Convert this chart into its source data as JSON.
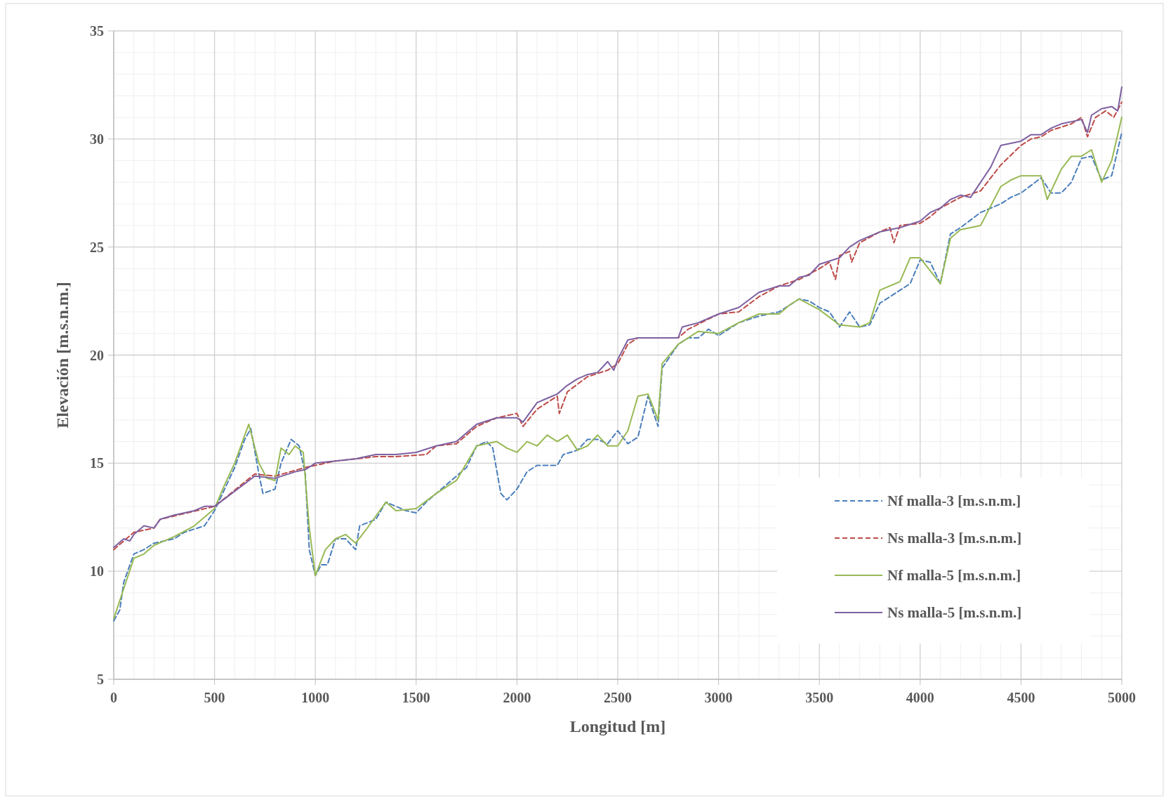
{
  "chart_data": {
    "type": "line",
    "xlabel": "Longitud [m]",
    "ylabel": "Elevación [m.s.n.m.]",
    "xlim": [
      0,
      5000
    ],
    "xticks": [
      0,
      500,
      1000,
      1500,
      2000,
      2500,
      3000,
      3500,
      4000,
      4500,
      5000
    ],
    "ylim": [
      5,
      35
    ],
    "yticks": [
      5,
      10,
      15,
      20,
      25,
      30,
      35
    ],
    "grid": true,
    "legend": "bottom right",
    "marker": "none",
    "series": [
      {
        "name": "Nf malla-3 [m.s.n.m.]",
        "color": "#4a7ebb",
        "line_style": "dashed",
        "x": [
          0,
          30,
          50,
          100,
          150,
          200,
          300,
          350,
          450,
          500,
          550,
          600,
          650,
          680,
          720,
          740,
          800,
          830,
          880,
          920,
          950,
          970,
          1000,
          1030,
          1060,
          1100,
          1150,
          1200,
          1220,
          1300,
          1350,
          1450,
          1500,
          1550,
          1600,
          1700,
          1750,
          1800,
          1850,
          1880,
          1920,
          1950,
          2000,
          2050,
          2100,
          2200,
          2230,
          2300,
          2350,
          2400,
          2450,
          2500,
          2550,
          2600,
          2650,
          2700,
          2720,
          2800,
          2850,
          2900,
          2950,
          3000,
          3100,
          3200,
          3300,
          3400,
          3450,
          3500,
          3550,
          3600,
          3650,
          3700,
          3750,
          3800,
          3900,
          3950,
          4000,
          4050,
          4100,
          4150,
          4200,
          4300,
          4400,
          4450,
          4500,
          4600,
          4650,
          4700,
          4750,
          4800,
          4850,
          4900,
          4950,
          5000
        ],
        "values": [
          7.7,
          8.2,
          9.5,
          10.8,
          11.0,
          11.3,
          11.5,
          11.8,
          12.1,
          12.8,
          13.8,
          14.8,
          16.1,
          16.6,
          14.5,
          13.6,
          13.8,
          15.0,
          16.1,
          15.8,
          14.5,
          11.0,
          9.8,
          10.3,
          10.3,
          11.5,
          11.5,
          11.0,
          12.1,
          12.4,
          13.2,
          12.8,
          12.7,
          13.2,
          13.6,
          14.4,
          14.8,
          15.8,
          16.0,
          15.7,
          13.6,
          13.3,
          13.8,
          14.6,
          14.9,
          14.9,
          15.4,
          15.6,
          16.1,
          16.1,
          15.9,
          16.5,
          15.9,
          16.2,
          18.1,
          16.7,
          19.4,
          20.5,
          20.8,
          20.8,
          21.2,
          20.9,
          21.5,
          21.8,
          22.0,
          22.6,
          22.5,
          22.2,
          22.0,
          21.3,
          22.0,
          21.3,
          21.4,
          22.4,
          23.0,
          23.3,
          24.4,
          24.3,
          23.3,
          25.6,
          25.9,
          26.6,
          27.0,
          27.3,
          27.5,
          28.2,
          27.5,
          27.5,
          28.0,
          29.1,
          29.2,
          28.1,
          28.3,
          30.3
        ]
      },
      {
        "name": "Ns malla-3 [m.s.n.m.]",
        "color": "#be4b48",
        "line_style": "dashed",
        "x": [
          0,
          100,
          200,
          230,
          500,
          700,
          800,
          950,
          1000,
          1100,
          1300,
          1400,
          1550,
          1600,
          1700,
          1800,
          1900,
          2000,
          2030,
          2100,
          2200,
          2210,
          2250,
          2350,
          2450,
          2500,
          2550,
          2600,
          2800,
          2850,
          3000,
          3100,
          3200,
          3300,
          3400,
          3500,
          3550,
          3580,
          3600,
          3650,
          3660,
          3700,
          3800,
          3850,
          3870,
          3900,
          4000,
          4050,
          4100,
          4200,
          4300,
          4350,
          4400,
          4500,
          4550,
          4600,
          4650,
          4750,
          4800,
          4830,
          4870,
          4920,
          4960,
          5000
        ],
        "values": [
          11.0,
          11.8,
          12.0,
          12.4,
          13.0,
          14.5,
          14.4,
          14.8,
          14.9,
          15.1,
          15.3,
          15.3,
          15.4,
          15.8,
          15.9,
          16.7,
          17.1,
          17.3,
          16.7,
          17.5,
          18.1,
          17.3,
          18.3,
          19.0,
          19.3,
          19.6,
          20.5,
          20.8,
          20.8,
          21.2,
          21.9,
          22.0,
          22.7,
          23.2,
          23.5,
          24.0,
          24.3,
          23.5,
          24.6,
          24.8,
          24.3,
          25.2,
          25.7,
          25.9,
          25.2,
          26.0,
          26.1,
          26.4,
          26.8,
          27.3,
          27.6,
          28.2,
          28.8,
          29.7,
          30.0,
          30.1,
          30.4,
          30.7,
          31.0,
          30.1,
          31.0,
          31.3,
          31.0,
          31.7
        ]
      },
      {
        "name": "Nf malla-5 [m.s.n.m.]",
        "color": "#98b954",
        "line_style": "solid",
        "x": [
          0,
          50,
          100,
          150,
          200,
          250,
          300,
          400,
          500,
          550,
          600,
          650,
          670,
          720,
          760,
          800,
          830,
          870,
          900,
          940,
          970,
          1000,
          1050,
          1100,
          1150,
          1200,
          1250,
          1350,
          1400,
          1500,
          1600,
          1700,
          1800,
          1900,
          1950,
          2000,
          2050,
          2100,
          2150,
          2200,
          2250,
          2300,
          2350,
          2400,
          2450,
          2500,
          2550,
          2600,
          2650,
          2700,
          2720,
          2800,
          2900,
          3000,
          3100,
          3200,
          3300,
          3350,
          3400,
          3500,
          3600,
          3700,
          3750,
          3800,
          3900,
          3950,
          4000,
          4100,
          4150,
          4200,
          4300,
          4400,
          4450,
          4500,
          4600,
          4630,
          4700,
          4750,
          4800,
          4850,
          4900,
          4950,
          5000
        ],
        "values": [
          7.8,
          9.2,
          10.6,
          10.8,
          11.2,
          11.4,
          11.6,
          12.1,
          12.9,
          14.0,
          15.0,
          16.3,
          16.8,
          15.0,
          14.3,
          14.2,
          15.7,
          15.4,
          15.8,
          15.5,
          12.0,
          9.8,
          11.0,
          11.5,
          11.7,
          11.3,
          11.9,
          13.2,
          12.8,
          12.9,
          13.6,
          14.2,
          15.8,
          16.0,
          15.7,
          15.5,
          16.0,
          15.8,
          16.3,
          16.0,
          16.3,
          15.6,
          15.8,
          16.3,
          15.8,
          15.8,
          16.5,
          18.1,
          18.2,
          17.0,
          19.6,
          20.5,
          21.1,
          21.0,
          21.5,
          21.9,
          21.9,
          22.3,
          22.6,
          22.1,
          21.4,
          21.3,
          21.5,
          23.0,
          23.4,
          24.5,
          24.5,
          23.3,
          25.4,
          25.8,
          26.0,
          27.8,
          28.1,
          28.3,
          28.3,
          27.2,
          28.6,
          29.2,
          29.2,
          29.5,
          28.0,
          29.0,
          31.0
        ]
      },
      {
        "name": "Ns malla-5 [m.s.n.m.]",
        "color": "#7d60a0",
        "line_style": "solid",
        "x": [
          0,
          50,
          80,
          100,
          150,
          200,
          230,
          300,
          400,
          450,
          500,
          700,
          800,
          900,
          950,
          1000,
          1100,
          1200,
          1300,
          1400,
          1500,
          1600,
          1700,
          1800,
          1900,
          2000,
          2030,
          2100,
          2150,
          2200,
          2250,
          2300,
          2350,
          2400,
          2450,
          2480,
          2500,
          2550,
          2600,
          2700,
          2800,
          2820,
          2900,
          3000,
          3100,
          3200,
          3300,
          3350,
          3400,
          3450,
          3500,
          3600,
          3650,
          3700,
          3800,
          3900,
          4000,
          4050,
          4100,
          4150,
          4200,
          4250,
          4300,
          4350,
          4400,
          4500,
          4550,
          4600,
          4650,
          4700,
          4800,
          4830,
          4850,
          4900,
          4950,
          4980,
          5000
        ],
        "values": [
          11.1,
          11.5,
          11.4,
          11.7,
          12.1,
          12.0,
          12.4,
          12.6,
          12.8,
          13.0,
          13.0,
          14.4,
          14.3,
          14.6,
          14.7,
          15.0,
          15.1,
          15.2,
          15.4,
          15.4,
          15.5,
          15.8,
          16.0,
          16.8,
          17.1,
          17.1,
          16.9,
          17.8,
          18.0,
          18.2,
          18.6,
          18.9,
          19.1,
          19.2,
          19.7,
          19.3,
          19.8,
          20.7,
          20.8,
          20.8,
          20.8,
          21.3,
          21.5,
          21.9,
          22.2,
          22.9,
          23.2,
          23.2,
          23.6,
          23.7,
          24.2,
          24.5,
          25.0,
          25.3,
          25.7,
          25.9,
          26.2,
          26.6,
          26.8,
          27.2,
          27.4,
          27.3,
          28.0,
          28.7,
          29.7,
          29.9,
          30.2,
          30.2,
          30.5,
          30.7,
          30.9,
          30.3,
          31.1,
          31.4,
          31.5,
          31.3,
          32.4
        ]
      }
    ]
  }
}
